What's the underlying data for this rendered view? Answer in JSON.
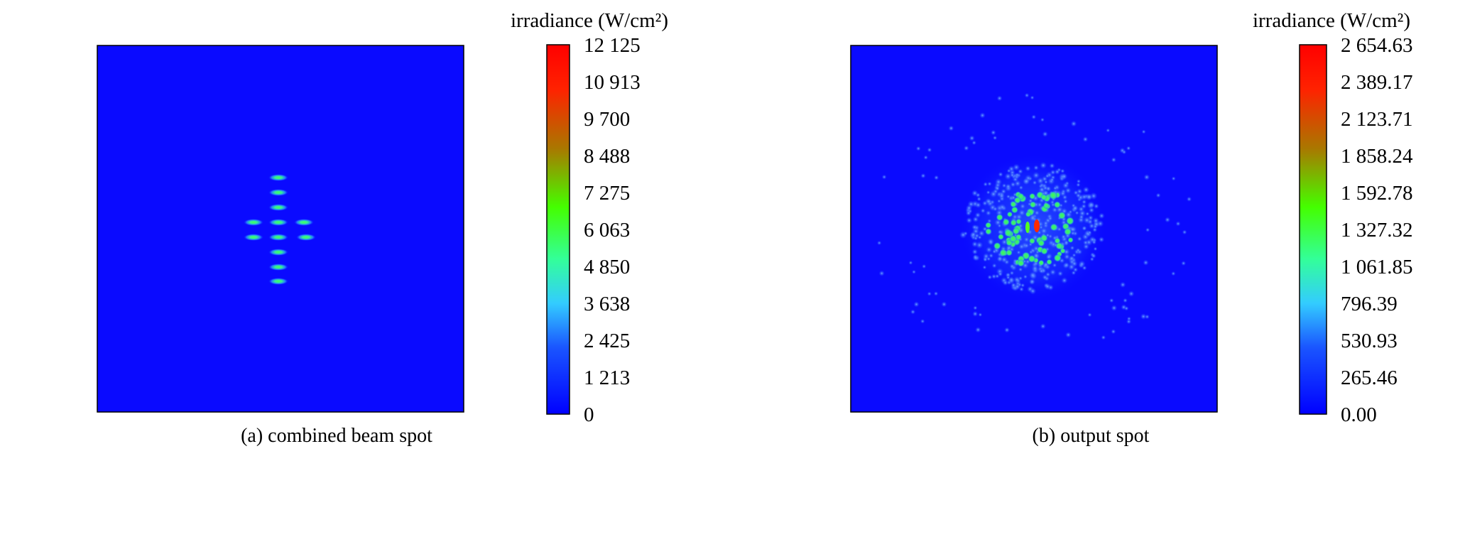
{
  "chart_data": [
    {
      "type": "heatmap",
      "caption": "(a) combined beam spot",
      "colorbar": {
        "title": "irradiance (W/cm²)",
        "min": 0,
        "max": 12125,
        "tick_labels": [
          "12 125",
          "10 913",
          "9 700",
          "8 488",
          "7 275",
          "6 063",
          "4 850",
          "3 638",
          "2 425",
          "1 213",
          "0"
        ]
      },
      "colormap": [
        "#0000ff",
        "#1a55ff",
        "#33ccff",
        "#33ff88",
        "#44ff00",
        "#aa7700",
        "#ff2200",
        "#ff0000"
      ],
      "background_level": 0,
      "pattern": "cross of 12 small elongated spots",
      "spot_peak_level": 0.62
    },
    {
      "type": "heatmap",
      "caption": "(b) output spot",
      "colorbar": {
        "title": "irradiance (W/cm²)",
        "min": 0,
        "max": 2654.63,
        "tick_labels": [
          "2 654.63",
          "2 389.17",
          "2 123.71",
          "1 858.24",
          "1 592.78",
          "1 327.32",
          "1 061.85",
          "796.39",
          "530.93",
          "265.46",
          "0.00"
        ]
      },
      "colormap": [
        "#0000ff",
        "#1a55ff",
        "#33ccff",
        "#33ff88",
        "#44ff00",
        "#aa7700",
        "#ff2200",
        "#ff0000"
      ],
      "background_level": 0,
      "pattern": "speckled ring halo with bright core",
      "core_peak_level": 1.0
    }
  ]
}
